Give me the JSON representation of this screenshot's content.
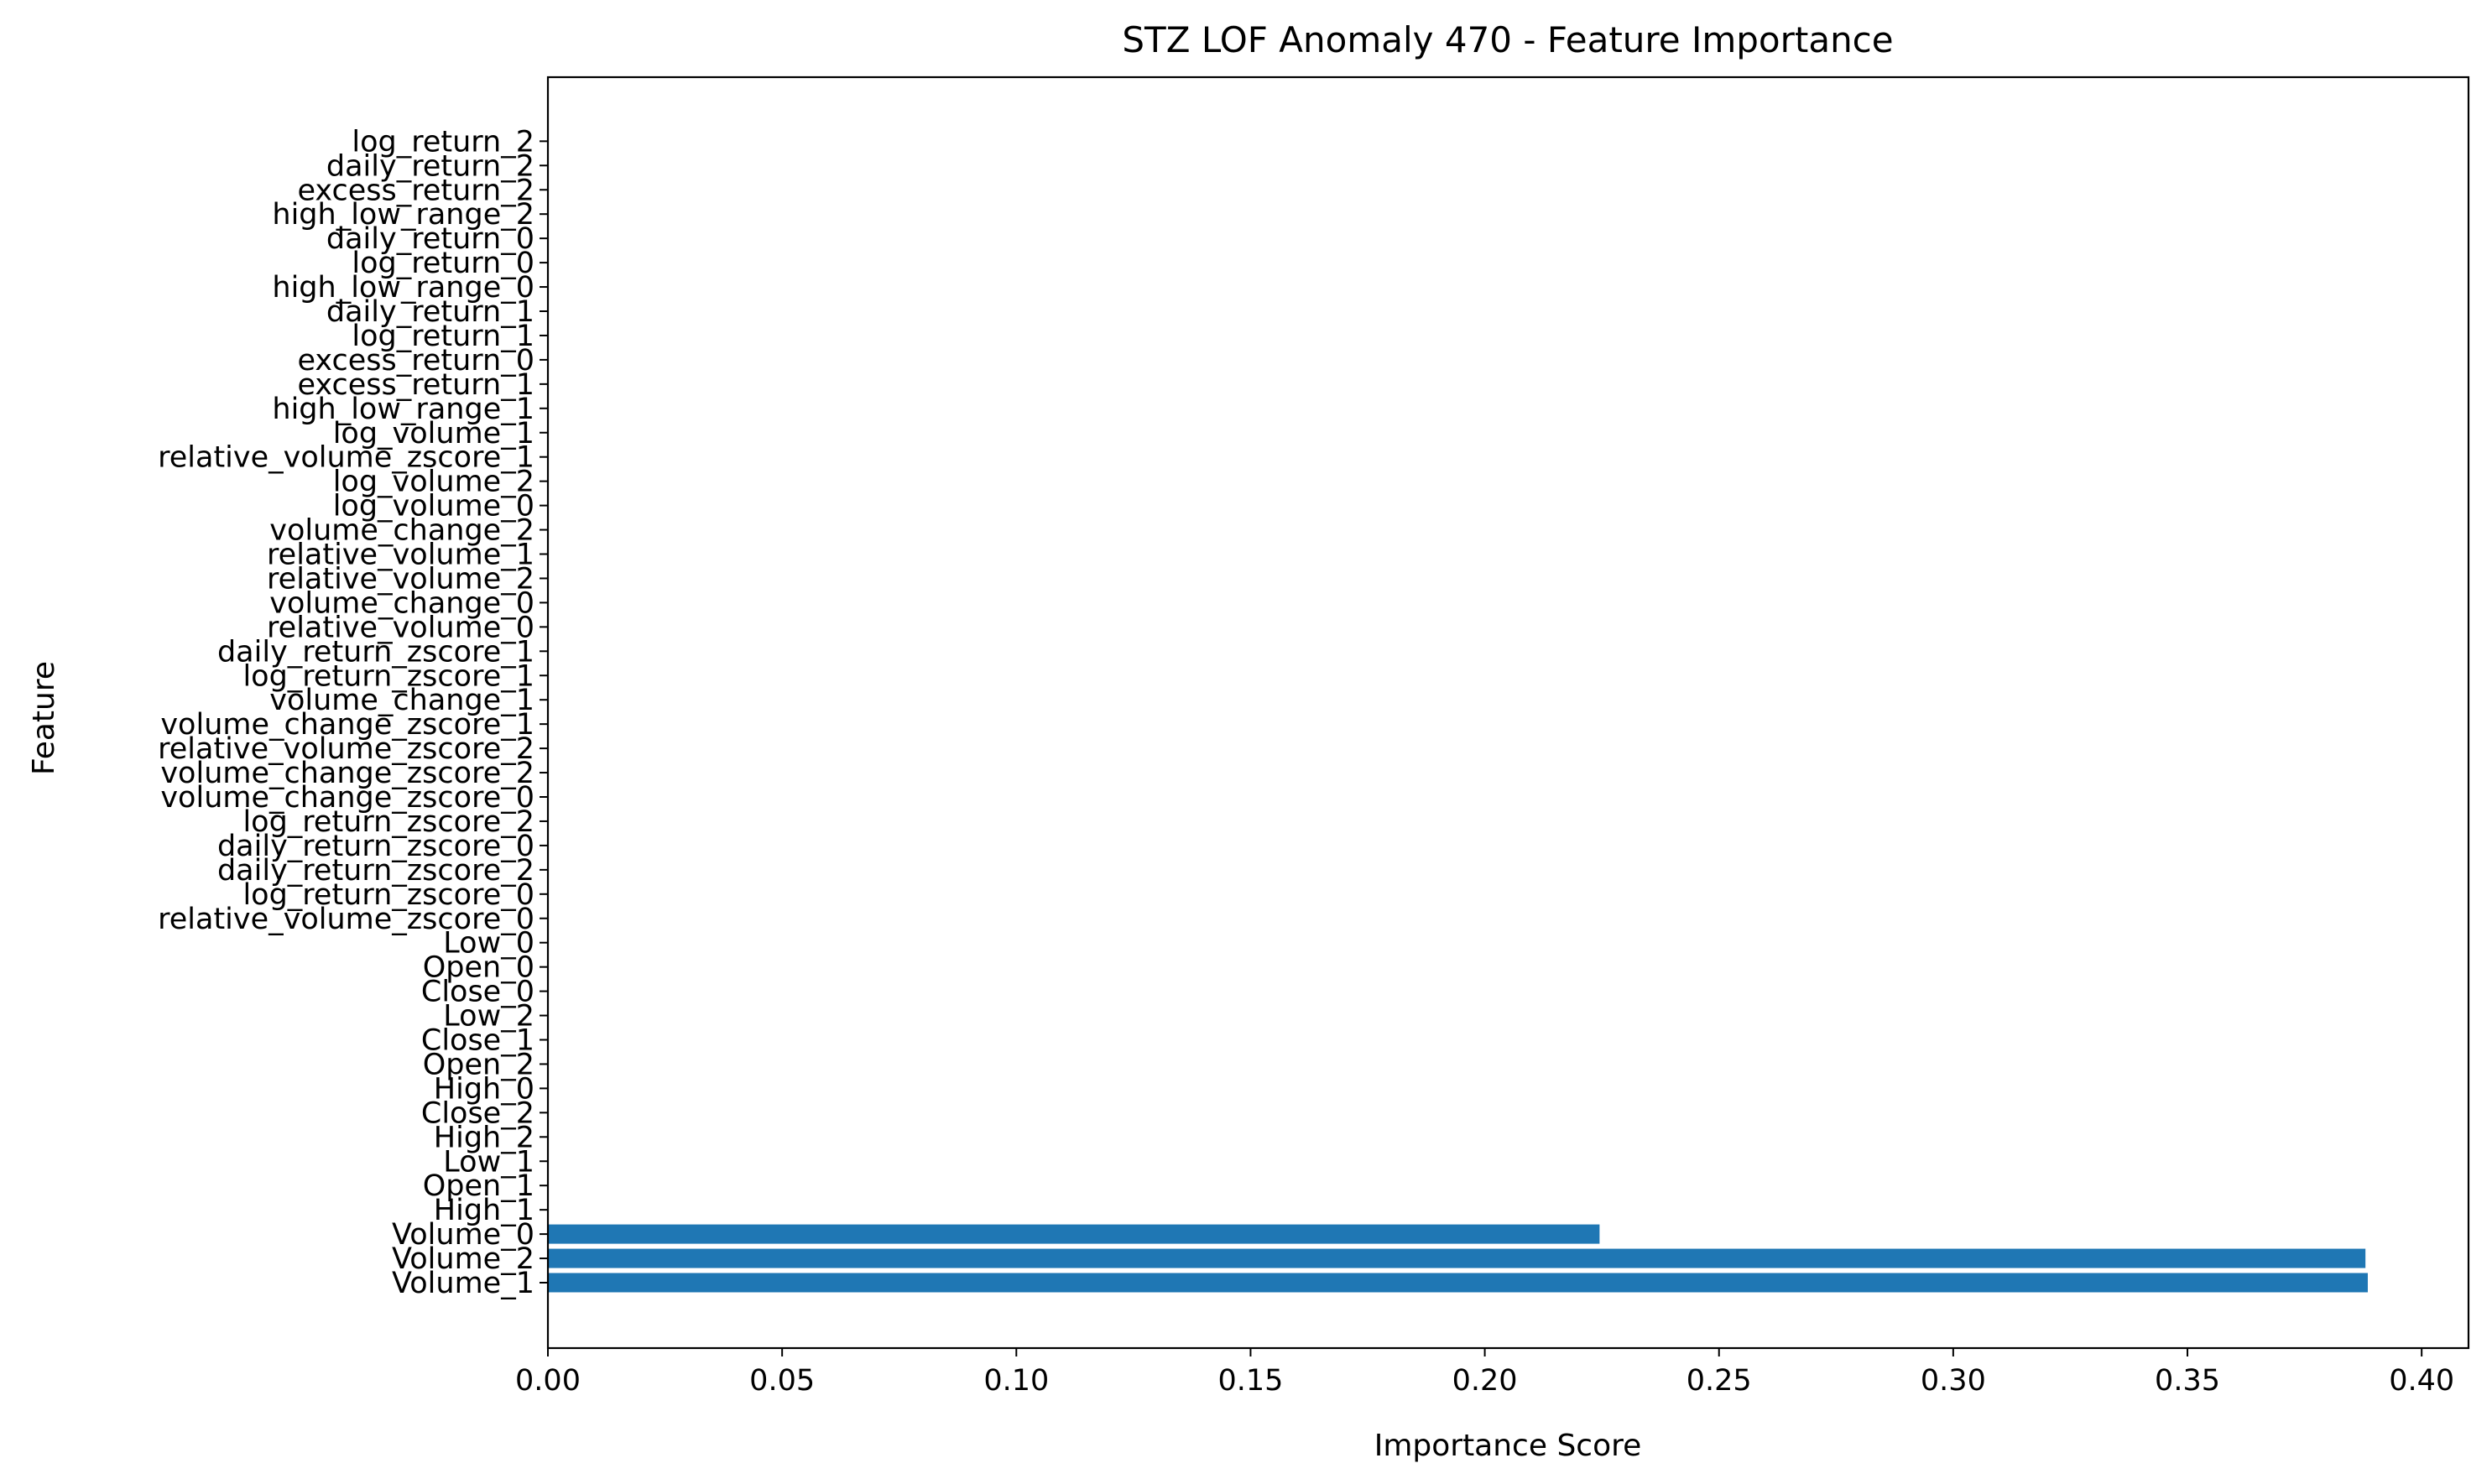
{
  "chart_data": {
    "type": "bar",
    "orientation": "horizontal",
    "title": "STZ LOF Anomaly 470 - Feature Importance",
    "xlabel": "Importance Score",
    "ylabel": "Feature",
    "xlim": [
      0,
      0.41
    ],
    "xticks": [
      "0.00",
      "0.05",
      "0.10",
      "0.15",
      "0.20",
      "0.25",
      "0.30",
      "0.35",
      "0.40"
    ],
    "xtick_values": [
      0,
      0.05,
      0.1,
      0.15,
      0.2,
      0.25,
      0.3,
      0.35,
      0.4
    ],
    "grid": false,
    "bar_color": "#1f77b4",
    "categories": [
      "Volume_1",
      "Volume_2",
      "Volume_0",
      "High_1",
      "Open_1",
      "Low_1",
      "High_2",
      "Close_2",
      "High_0",
      "Open_2",
      "Close_1",
      "Low_2",
      "Close_0",
      "Open_0",
      "Low_0",
      "relative_volume_zscore_0",
      "log_return_zscore_0",
      "daily_return_zscore_2",
      "daily_return_zscore_0",
      "log_return_zscore_2",
      "volume_change_zscore_0",
      "volume_change_zscore_2",
      "relative_volume_zscore_2",
      "volume_change_zscore_1",
      "volume_change_1",
      "log_return_zscore_1",
      "daily_return_zscore_1",
      "relative_volume_0",
      "volume_change_0",
      "relative_volume_2",
      "relative_volume_1",
      "volume_change_2",
      "log_volume_0",
      "log_volume_2",
      "relative_volume_zscore_1",
      "log_volume_1",
      "high_low_range_1",
      "excess_return_1",
      "excess_return_0",
      "log_return_1",
      "daily_return_1",
      "high_low_range_0",
      "log_return_0",
      "daily_return_0",
      "high_low_range_2",
      "excess_return_2",
      "daily_return_2",
      "log_return_2"
    ],
    "values": [
      0.3885,
      0.388,
      0.2245,
      0,
      0,
      0,
      0,
      0,
      0,
      0,
      0,
      0,
      0,
      0,
      0,
      0,
      0,
      0,
      0,
      0,
      0,
      0,
      0,
      0,
      0,
      0,
      0,
      0,
      0,
      0,
      0,
      0,
      0,
      0,
      0,
      0,
      0,
      0,
      0,
      0,
      0,
      0,
      0,
      0,
      0,
      0,
      0,
      0
    ]
  }
}
